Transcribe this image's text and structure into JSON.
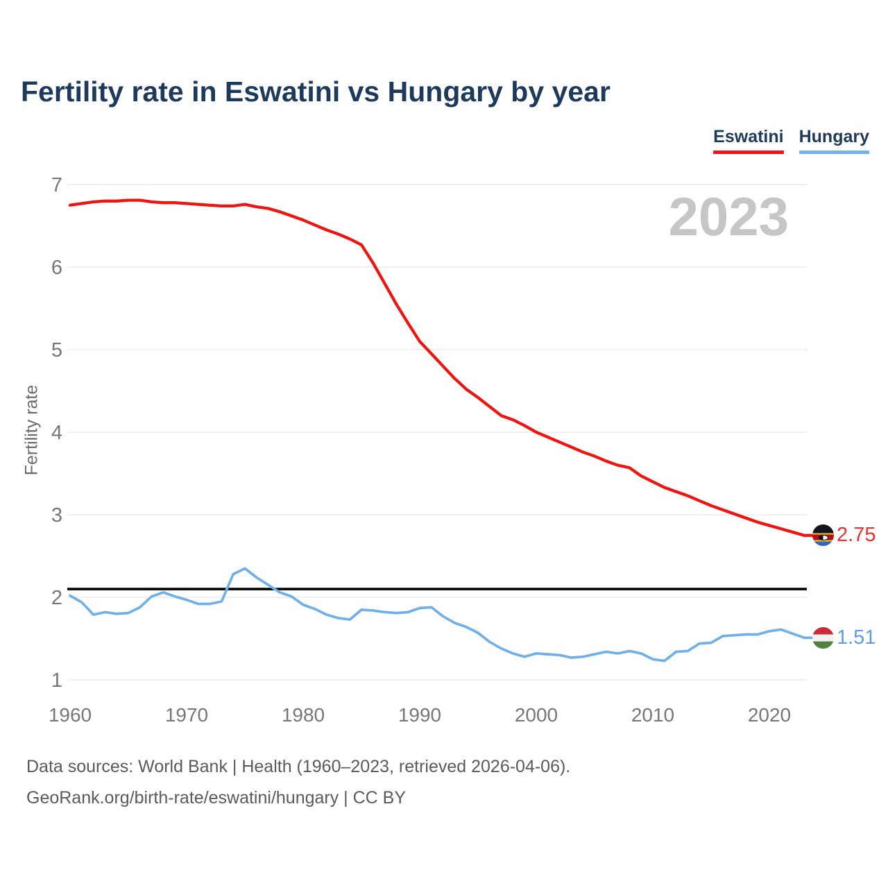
{
  "title": "Fertility rate in Eswatini vs Hungary by year",
  "legend": {
    "items": [
      {
        "label": "Eswatini",
        "color": "#f5121a"
      },
      {
        "label": "Hungary",
        "color": "#74b2e8"
      }
    ]
  },
  "watermark": "2023",
  "y_axis_label": "Fertility rate",
  "end_labels": {
    "eswatini": {
      "value": "2.75",
      "color": "#e8302e",
      "icon": "eswatini-flag-icon"
    },
    "hungary": {
      "value": "1.51",
      "color": "#5b9fe3",
      "icon": "hungary-flag-icon"
    }
  },
  "footer": {
    "line1": "Data sources: World Bank | Health (1960–2023, retrieved 2026-04-06).",
    "line2": "GeoRank.org/birth-rate/eswatini/hungary | CC BY"
  },
  "chart_data": {
    "type": "line",
    "title": "Fertility rate in Eswatini vs Hungary by year",
    "xlabel": "",
    "ylabel": "Fertility rate",
    "ylim": [
      1,
      7
    ],
    "yticks": [
      1,
      2,
      3,
      4,
      5,
      6,
      7
    ],
    "xticks": [
      1960,
      1970,
      1980,
      1990,
      2000,
      2010,
      2020
    ],
    "grid": true,
    "grid_color": "#e7e7e7",
    "tick_color": "#767676",
    "legend_position": "top-right",
    "reference_line": {
      "value": 2.1,
      "color": "#000000",
      "width": 3.6
    },
    "x": [
      1960,
      1961,
      1962,
      1963,
      1964,
      1965,
      1966,
      1967,
      1968,
      1969,
      1970,
      1971,
      1972,
      1973,
      1974,
      1975,
      1976,
      1977,
      1978,
      1979,
      1980,
      1981,
      1982,
      1983,
      1984,
      1985,
      1986,
      1987,
      1988,
      1989,
      1990,
      1991,
      1992,
      1993,
      1994,
      1995,
      1996,
      1997,
      1998,
      1999,
      2000,
      2001,
      2002,
      2003,
      2004,
      2005,
      2006,
      2007,
      2008,
      2009,
      2010,
      2011,
      2012,
      2013,
      2014,
      2015,
      2016,
      2017,
      2018,
      2019,
      2020,
      2021,
      2022,
      2023
    ],
    "series": [
      {
        "name": "Eswatini",
        "color": "#ee1410",
        "line_width": 4.3,
        "values": [
          6.75,
          6.77,
          6.79,
          6.8,
          6.8,
          6.81,
          6.81,
          6.79,
          6.78,
          6.78,
          6.77,
          6.76,
          6.75,
          6.74,
          6.74,
          6.76,
          6.73,
          6.71,
          6.67,
          6.62,
          6.57,
          6.51,
          6.45,
          6.4,
          6.34,
          6.27,
          6.05,
          5.8,
          5.55,
          5.32,
          5.1,
          4.95,
          4.8,
          4.65,
          4.52,
          4.42,
          4.31,
          4.2,
          4.15,
          4.08,
          4.0,
          3.94,
          3.88,
          3.82,
          3.76,
          3.71,
          3.65,
          3.6,
          3.57,
          3.47,
          3.4,
          3.33,
          3.28,
          3.23,
          3.17,
          3.11,
          3.06,
          3.01,
          2.96,
          2.91,
          2.87,
          2.83,
          2.79,
          2.75
        ]
      },
      {
        "name": "Hungary",
        "color": "#6fb0e8",
        "line_width": 3.7,
        "values": [
          2.02,
          1.94,
          1.79,
          1.82,
          1.8,
          1.81,
          1.88,
          2.01,
          2.06,
          2.01,
          1.97,
          1.92,
          1.92,
          1.95,
          2.28,
          2.35,
          2.24,
          2.15,
          2.06,
          2.01,
          1.91,
          1.86,
          1.79,
          1.75,
          1.73,
          1.85,
          1.84,
          1.82,
          1.81,
          1.82,
          1.87,
          1.88,
          1.77,
          1.69,
          1.64,
          1.57,
          1.46,
          1.38,
          1.32,
          1.28,
          1.32,
          1.31,
          1.3,
          1.27,
          1.28,
          1.31,
          1.34,
          1.32,
          1.35,
          1.32,
          1.25,
          1.23,
          1.34,
          1.35,
          1.44,
          1.45,
          1.53,
          1.54,
          1.55,
          1.55,
          1.59,
          1.61,
          1.56,
          1.51
        ]
      }
    ]
  }
}
